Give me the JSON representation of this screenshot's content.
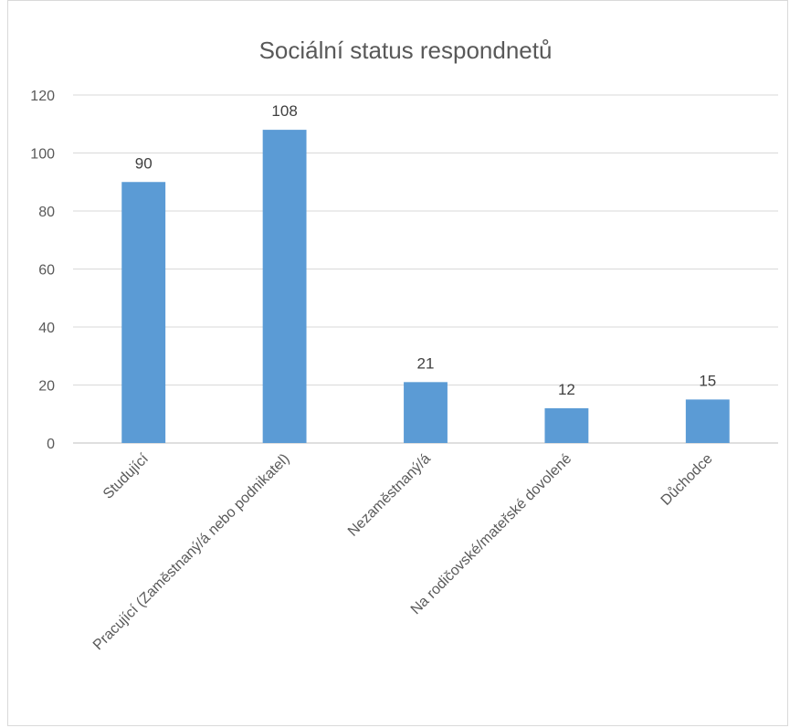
{
  "chart_data": {
    "type": "bar",
    "title": "Sociální status respondnetů",
    "categories": [
      "Studující",
      "Pracující (Zaměstnaný/á nebo podnikatel)",
      "Nezaměstnaný/á",
      "Na rodičovské/mateřské dovolené",
      "Důchodce"
    ],
    "values": [
      90,
      108,
      21,
      12,
      15
    ],
    "ylim": [
      0,
      120
    ],
    "yticks": [
      0,
      20,
      40,
      60,
      80,
      100,
      120
    ],
    "grid": true,
    "bar_color": "#5b9bd5",
    "data_labels": true,
    "legend": "none"
  }
}
